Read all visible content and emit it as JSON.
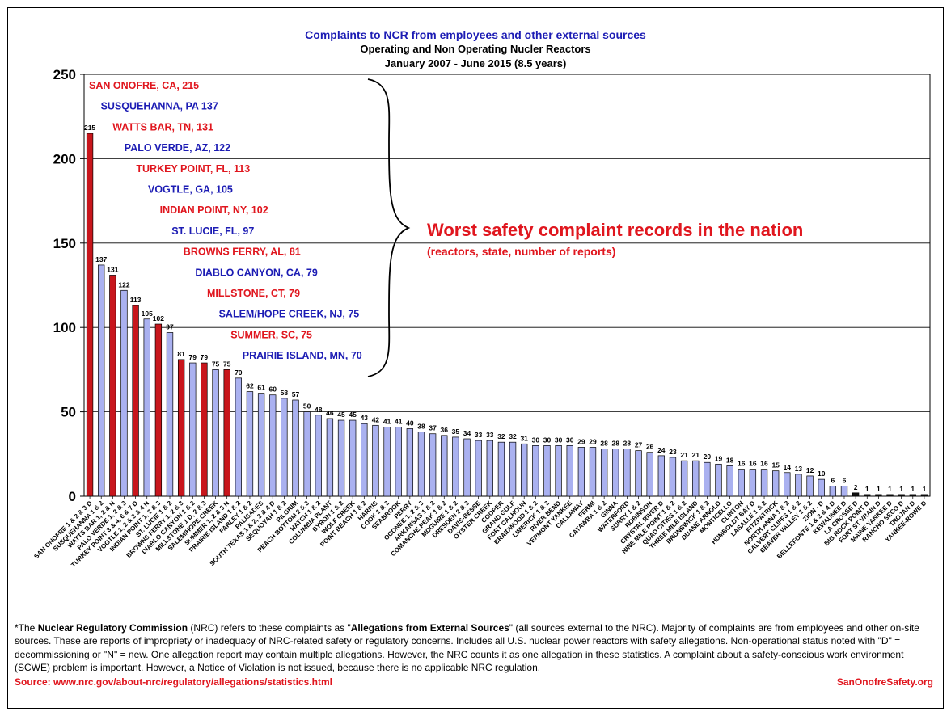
{
  "chart_data": {
    "type": "bar",
    "title": "Complaints to NCR from employees and other external sources",
    "subtitle": [
      "Operating and Non Operating Nucler Reactors",
      "January 2007 - June 2015 (8.5 years)"
    ],
    "xlabel": "",
    "ylabel": "",
    "ylim": [
      0,
      250
    ],
    "yticks": [
      0,
      50,
      100,
      150,
      200,
      250
    ],
    "grid": true,
    "legend": "none",
    "colors": {
      "highlight": "#c8161c",
      "normal": "#aab1f0",
      "decommissioned": "#111111",
      "blue_text": "#1c1cb4",
      "red_text": "#e0161e"
    },
    "categories": [
      "SAN ONOFRE 1 & 2 & 3 D",
      "SUSQUEHANNA 1 & 2",
      "WATTS BAR 1, 2 & N",
      "PALO VERDE 1, 2 & 3",
      "TURKEY POINT 3 & 4, 6 & 7 D",
      "VOGTLE 1, 2 & 3 & 4 N",
      "INDIAN POINT 1, 2 & 3",
      "ST. LUCIE 1 & 2",
      "BROWNS FERRY 1, 2 & 3",
      "DIABLO CANYON 1 & 2",
      "MILLSTONE 1 D, 2 & 3",
      "SALEM/HOPE CREEK",
      "SUMMER 1, 2 & 3 N",
      "PRAIRIE ISLAND 1 & 2",
      "FARLEY 1 & 2",
      "PALISADES",
      "SOUTH TEXAS 1 & 2, 3 & 4 D",
      "SEQUOYAH 1 & 2",
      "PILGRIM",
      "PEACH BOTTOM 2 & 3",
      "HATCH 1 & 2",
      "COLUMBIA PLANT",
      "BYRON 1 & 2",
      "WOLF CREEK",
      "POINT BEACH 1 & 2",
      "HARRIS",
      "COOK 1 & 2",
      "SEABROOK",
      "PERRY",
      "OCONEE 1, 2 & 3",
      "ARKANSAS 1 & 2",
      "COMANCHE PEAK 1 & 2",
      "MCGUIRE 1 & 2",
      "DRESDEN 2 & 3",
      "DAVIS-BESSE",
      "OYSTER CREEK",
      "COOPER",
      "GRAND GULF",
      "FORT CALHOUN",
      "BRAIDWOOD 1 & 2",
      "LIMERICK 1 & 2",
      "RIVER BEND",
      "VERMONT YANKEE",
      "CALLAWAY",
      "FERMI",
      "CATAWBA 1 & 2",
      "GINNA",
      "WATERFORD",
      "SURRY 1 & 2",
      "ROBINSON",
      "CRYSTAL RIVER D",
      "NINE MILE POINT 1 & 2",
      "QUAD CITIES 1 & 2",
      "THREE MILE ISLAND",
      "BRUNSWICK 1 & 2",
      "DUANE ARNOLD",
      "MONTICELLO",
      "CLINTON",
      "HUMBOLDT BAY D",
      "LASALLE 1 & 2",
      "FITZPATRICK",
      "NORTH ANNA 1 & 2",
      "CALVERT CLIFFS 1 & 2",
      "BEAVER VALLEY 1 & 2",
      "ZION - D",
      "BELLEFONTE 1 & 3 & 4 D",
      "KEWAUNEE D",
      "LA CROSSE D",
      "BIG ROCK POINT D",
      "FORT ST VRAIN D",
      "MAINE YANKEE D",
      "RANCHO SECO D",
      "TROJAN D",
      "YANKEE-ROWE D"
    ],
    "values": [
      215,
      137,
      131,
      122,
      113,
      105,
      102,
      97,
      81,
      79,
      79,
      75,
      75,
      70,
      62,
      61,
      60,
      58,
      57,
      50,
      48,
      46,
      45,
      45,
      43,
      42,
      41,
      41,
      40,
      38,
      37,
      36,
      35,
      34,
      33,
      33,
      32,
      32,
      31,
      30,
      30,
      30,
      30,
      29,
      29,
      28,
      28,
      28,
      27,
      26,
      24,
      23,
      21,
      21,
      20,
      19,
      18,
      16,
      16,
      16,
      15,
      14,
      13,
      12,
      10,
      6,
      6,
      2,
      1,
      1,
      1,
      1,
      1,
      1
    ],
    "highlighted_indices": [
      0,
      2,
      4,
      6,
      8,
      10,
      12
    ],
    "decommissioned_indices": [
      67,
      68,
      69,
      70,
      71,
      72,
      73
    ],
    "annotations": {
      "heading": "Worst safety complaint records in the nation",
      "subheading": "(reactors, state, number of reports)",
      "top_list": [
        {
          "text": "SAN ONOFRE, CA, 215",
          "color": "red"
        },
        {
          "text": "SUSQUEHANNA, PA 137",
          "color": "blue"
        },
        {
          "text": "WATTS BAR, TN, 131",
          "color": "red"
        },
        {
          "text": "PALO VERDE, AZ, 122",
          "color": "blue"
        },
        {
          "text": "TURKEY POINT, FL, 113",
          "color": "red"
        },
        {
          "text": "VOGTLE, GA, 105",
          "color": "blue"
        },
        {
          "text": "INDIAN POINT, NY, 102",
          "color": "red"
        },
        {
          "text": "ST. LUCIE, FL, 97",
          "color": "blue"
        },
        {
          "text": "BROWNS FERRY, AL, 81",
          "color": "red"
        },
        {
          "text": "DIABLO CANYON, CA, 79",
          "color": "blue"
        },
        {
          "text": "MILLSTONE, CT, 79",
          "color": "red"
        },
        {
          "text": "SALEM/HOPE CREEK, NJ, 75",
          "color": "blue"
        },
        {
          "text": "SUMMER, SC, 75",
          "color": "red"
        },
        {
          "text": "PRAIRIE ISLAND, MN, 70",
          "color": "blue"
        }
      ]
    }
  },
  "footer": {
    "p1": "*The ",
    "nrc_bold": "Nuclear Regulatory Commission",
    "p2": " (NRC) refers to these complaints as \"",
    "alleg_bold": "Allegations from External Sources",
    "p3": "\" (all sources external to the NRC). Majority of complaints are from employees and other on-site sources. These are reports of impropriety or inadequacy of NRC-related safety or regulatory concerns. Includes all U.S. nuclear power reactors with safety allegations. Non-operational status noted with \"D\" = decommissioning or \"N\" = new. One allegation report may contain multiple allegations. However, the NRC counts it as one allegation in these statistics. A complaint about a safety-conscious work environment (SCWE) problem is important. However, a Notice of Violation is not issued, because there is no applicable NRC regulation.",
    "source": "Source: www.nrc.gov/about-nrc/regulatory/allegations/statistics.html",
    "brand": "SanOnofreSafety.org"
  }
}
